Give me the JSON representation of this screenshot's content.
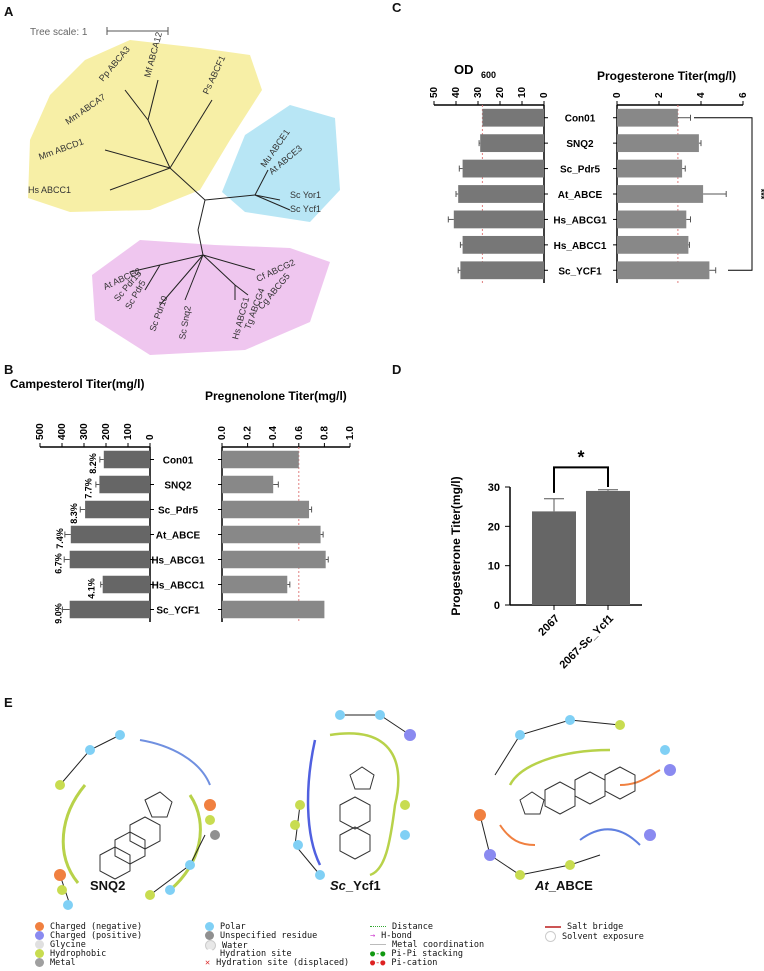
{
  "panels": {
    "a": "A",
    "b": "B",
    "c": "C",
    "d": "D",
    "e": "E"
  },
  "tree": {
    "scale_label": "Tree scale: 1",
    "colors": {
      "yellow": "#f7efa6",
      "blue": "#b8e6f5",
      "pink": "#efc6ef"
    },
    "yellow_labels": [
      "Pp ABCA3",
      "Mf ABCA12",
      "Ps ABCF1",
      "Mm ABCA7",
      "Mm ABCD1",
      "Hs ABCC1"
    ],
    "blue_labels": [
      "Mu ABCE1",
      "At ABCE3",
      "Sc Yor1",
      "Sc Ycf1"
    ],
    "pink_labels": [
      "At ABCE2",
      "Sc Pdr15",
      "Sc Pdr5",
      "Sc Pdr10",
      "Sc Snq2",
      "Hs ABCG1",
      "Tg ABCG4",
      "Cg ABCG5",
      "Cf ABCG2"
    ]
  },
  "chart_data": [
    {
      "id": "B-left",
      "type": "bar",
      "title": "Campesterol Titer(mg/l)",
      "orientation": "horizontal-reversed",
      "xlim": [
        0,
        500
      ],
      "ticks": [
        "500",
        "400",
        "300",
        "200",
        "100",
        "0"
      ],
      "categories": [
        "Con01",
        "SNQ2",
        "Sc_Pdr5",
        "At_ABCE",
        "Hs_ABCG1",
        "Hs_ABCC1",
        "Sc_YCF1"
      ],
      "values": [
        210,
        230,
        295,
        360,
        365,
        215,
        365
      ],
      "errors": [
        18,
        16,
        22,
        27,
        25,
        9,
        33
      ],
      "bar_annotations": [
        "8.2%",
        "7.7%",
        "8.3%",
        "7.4%",
        "6.7%",
        "4.1%",
        "9.0%"
      ]
    },
    {
      "id": "B-right",
      "type": "bar",
      "title": "Pregnenolone Titer(mg/l)",
      "orientation": "horizontal",
      "xlim": [
        0,
        1.0
      ],
      "ticks": [
        "0.0",
        "0.2",
        "0.4",
        "0.6",
        "0.8",
        "1.0"
      ],
      "categories": [
        "Con01",
        "SNQ2",
        "Sc_Pdr5",
        "At_ABCE",
        "Hs_ABCG1",
        "Hs_ABCC1",
        "Sc_YCF1"
      ],
      "values": [
        0.6,
        0.4,
        0.68,
        0.77,
        0.81,
        0.51,
        0.8
      ],
      "errors": [
        0.0,
        0.04,
        0.02,
        0.02,
        0.02,
        0.02,
        0.0
      ],
      "reference_line": 0.6
    },
    {
      "id": "C-left",
      "type": "bar",
      "title": "OD",
      "title_sub": "600",
      "orientation": "horizontal-reversed",
      "xlim": [
        0,
        50
      ],
      "ticks": [
        "50",
        "40",
        "30",
        "20",
        "10",
        "0"
      ],
      "categories": [
        "Con01",
        "SNQ2",
        "Sc_Pdr5",
        "At_ABCE",
        "Hs_ABCG1",
        "Hs_ABCC1",
        "Sc_YCF1"
      ],
      "values": [
        28,
        29,
        37,
        39,
        41,
        37,
        38
      ],
      "errors": [
        0,
        0.5,
        1.5,
        1,
        2.5,
        1,
        1
      ],
      "reference_line": 28
    },
    {
      "id": "C-right",
      "type": "bar",
      "title": "Progesterone Titer(mg/l)",
      "orientation": "horizontal",
      "xlim": [
        0,
        6
      ],
      "ticks": [
        "0",
        "2",
        "4",
        "6"
      ],
      "categories": [
        "Con01",
        "SNQ2",
        "Sc_Pdr5",
        "At_ABCE",
        "Hs_ABCG1",
        "Hs_ABCC1",
        "Sc_YCF1"
      ],
      "values": [
        2.9,
        3.9,
        3.1,
        4.1,
        3.3,
        3.4,
        4.4
      ],
      "errors": [
        0.6,
        0.1,
        0.15,
        1.1,
        0.2,
        0.05,
        0.3
      ],
      "reference_line": 2.9,
      "significance": "***"
    },
    {
      "id": "D",
      "type": "bar",
      "orientation": "vertical",
      "ylabel": "Progesterone Titer(mg/l)",
      "ylim": [
        0,
        30
      ],
      "ticks": [
        "0",
        "10",
        "20",
        "30"
      ],
      "categories": [
        "2067",
        "2067-Sc_Ycf1"
      ],
      "values": [
        23.8,
        29.0
      ],
      "errors": [
        3.2,
        0.3
      ],
      "significance": "*"
    }
  ],
  "docking": {
    "ligands": [
      "SNQ2",
      "Sc_Ycf1",
      "At_ABCE"
    ],
    "ligand_prefix": [
      "",
      "Sc",
      "At"
    ],
    "ligand_suffix": [
      "SNQ2",
      "_Ycf1",
      "_ABCE"
    ]
  },
  "legend": {
    "col1": [
      {
        "label": "Charged (negative)",
        "color": "#f08040"
      },
      {
        "label": "Charged (positive)",
        "color": "#8a8af0"
      },
      {
        "label": "Glycine",
        "color": "#e0e0e0"
      },
      {
        "label": "Hydrophobic",
        "color": "#c8dc50"
      },
      {
        "label": "Metal",
        "color": "#a0a0a0"
      }
    ],
    "col2": [
      {
        "label": "Polar",
        "color": "#80d0f5"
      },
      {
        "label": "Unspecified residue",
        "color": "#909090"
      },
      {
        "label": "Water",
        "color": "#e8e8e8"
      },
      {
        "label": "Hydration site",
        "color": "#ffffff"
      },
      {
        "label": "Hydration site (displaced)",
        "color": "#ffffff"
      }
    ],
    "col3": [
      "Distance",
      "H-bond",
      "Metal coordination",
      "Pi-Pi stacking",
      "Pi-cation"
    ],
    "col4": [
      "Salt bridge",
      "Solvent exposure"
    ]
  }
}
